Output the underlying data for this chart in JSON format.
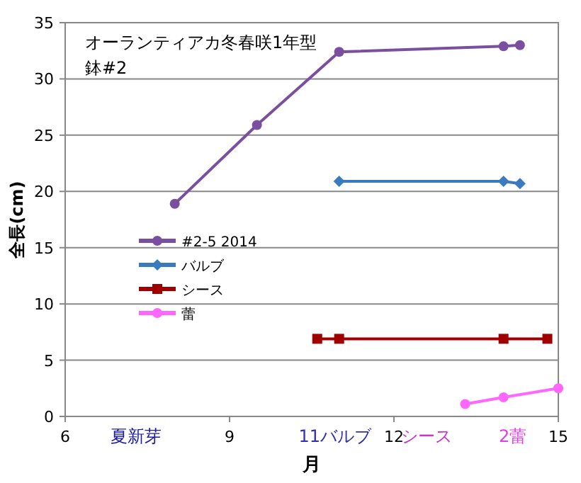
{
  "chart_data": {
    "type": "line",
    "title": "オーランティアカ冬春咲1年型",
    "subtitle": "鉢#2",
    "xlabel": "月",
    "ylabel": "全長(cm)",
    "xlim": [
      6,
      15
    ],
    "xticks": [
      6,
      9,
      12,
      15
    ],
    "ylim": [
      0,
      35
    ],
    "yticks": [
      0,
      5,
      10,
      15,
      20,
      25,
      30,
      35
    ],
    "grid": "y",
    "legend": "left",
    "series": [
      {
        "name": "#2-5 2014",
        "color": "#7b4fa0",
        "marker": "circle",
        "x": [
          8.0,
          9.5,
          11.0,
          14.0,
          14.3
        ],
        "values": [
          18.9,
          25.9,
          32.4,
          32.9,
          33.0
        ]
      },
      {
        "name": "バルブ",
        "color": "#3a7bbf",
        "marker": "diamond",
        "x": [
          11.0,
          14.0,
          14.3
        ],
        "values": [
          20.9,
          20.9,
          20.7
        ]
      },
      {
        "name": "シース",
        "color": "#a00000",
        "marker": "square",
        "x": [
          10.6,
          11.0,
          14.0,
          14.8
        ],
        "values": [
          6.9,
          6.9,
          6.9,
          6.9
        ]
      },
      {
        "name": "蕾",
        "color": "#ff66ff",
        "marker": "circle",
        "x": [
          13.3,
          14.0,
          15.0
        ],
        "values": [
          1.1,
          1.7,
          2.5
        ]
      }
    ],
    "annotations": [
      "夏新芽",
      "11バルブ",
      "シース",
      "2蕾"
    ]
  }
}
